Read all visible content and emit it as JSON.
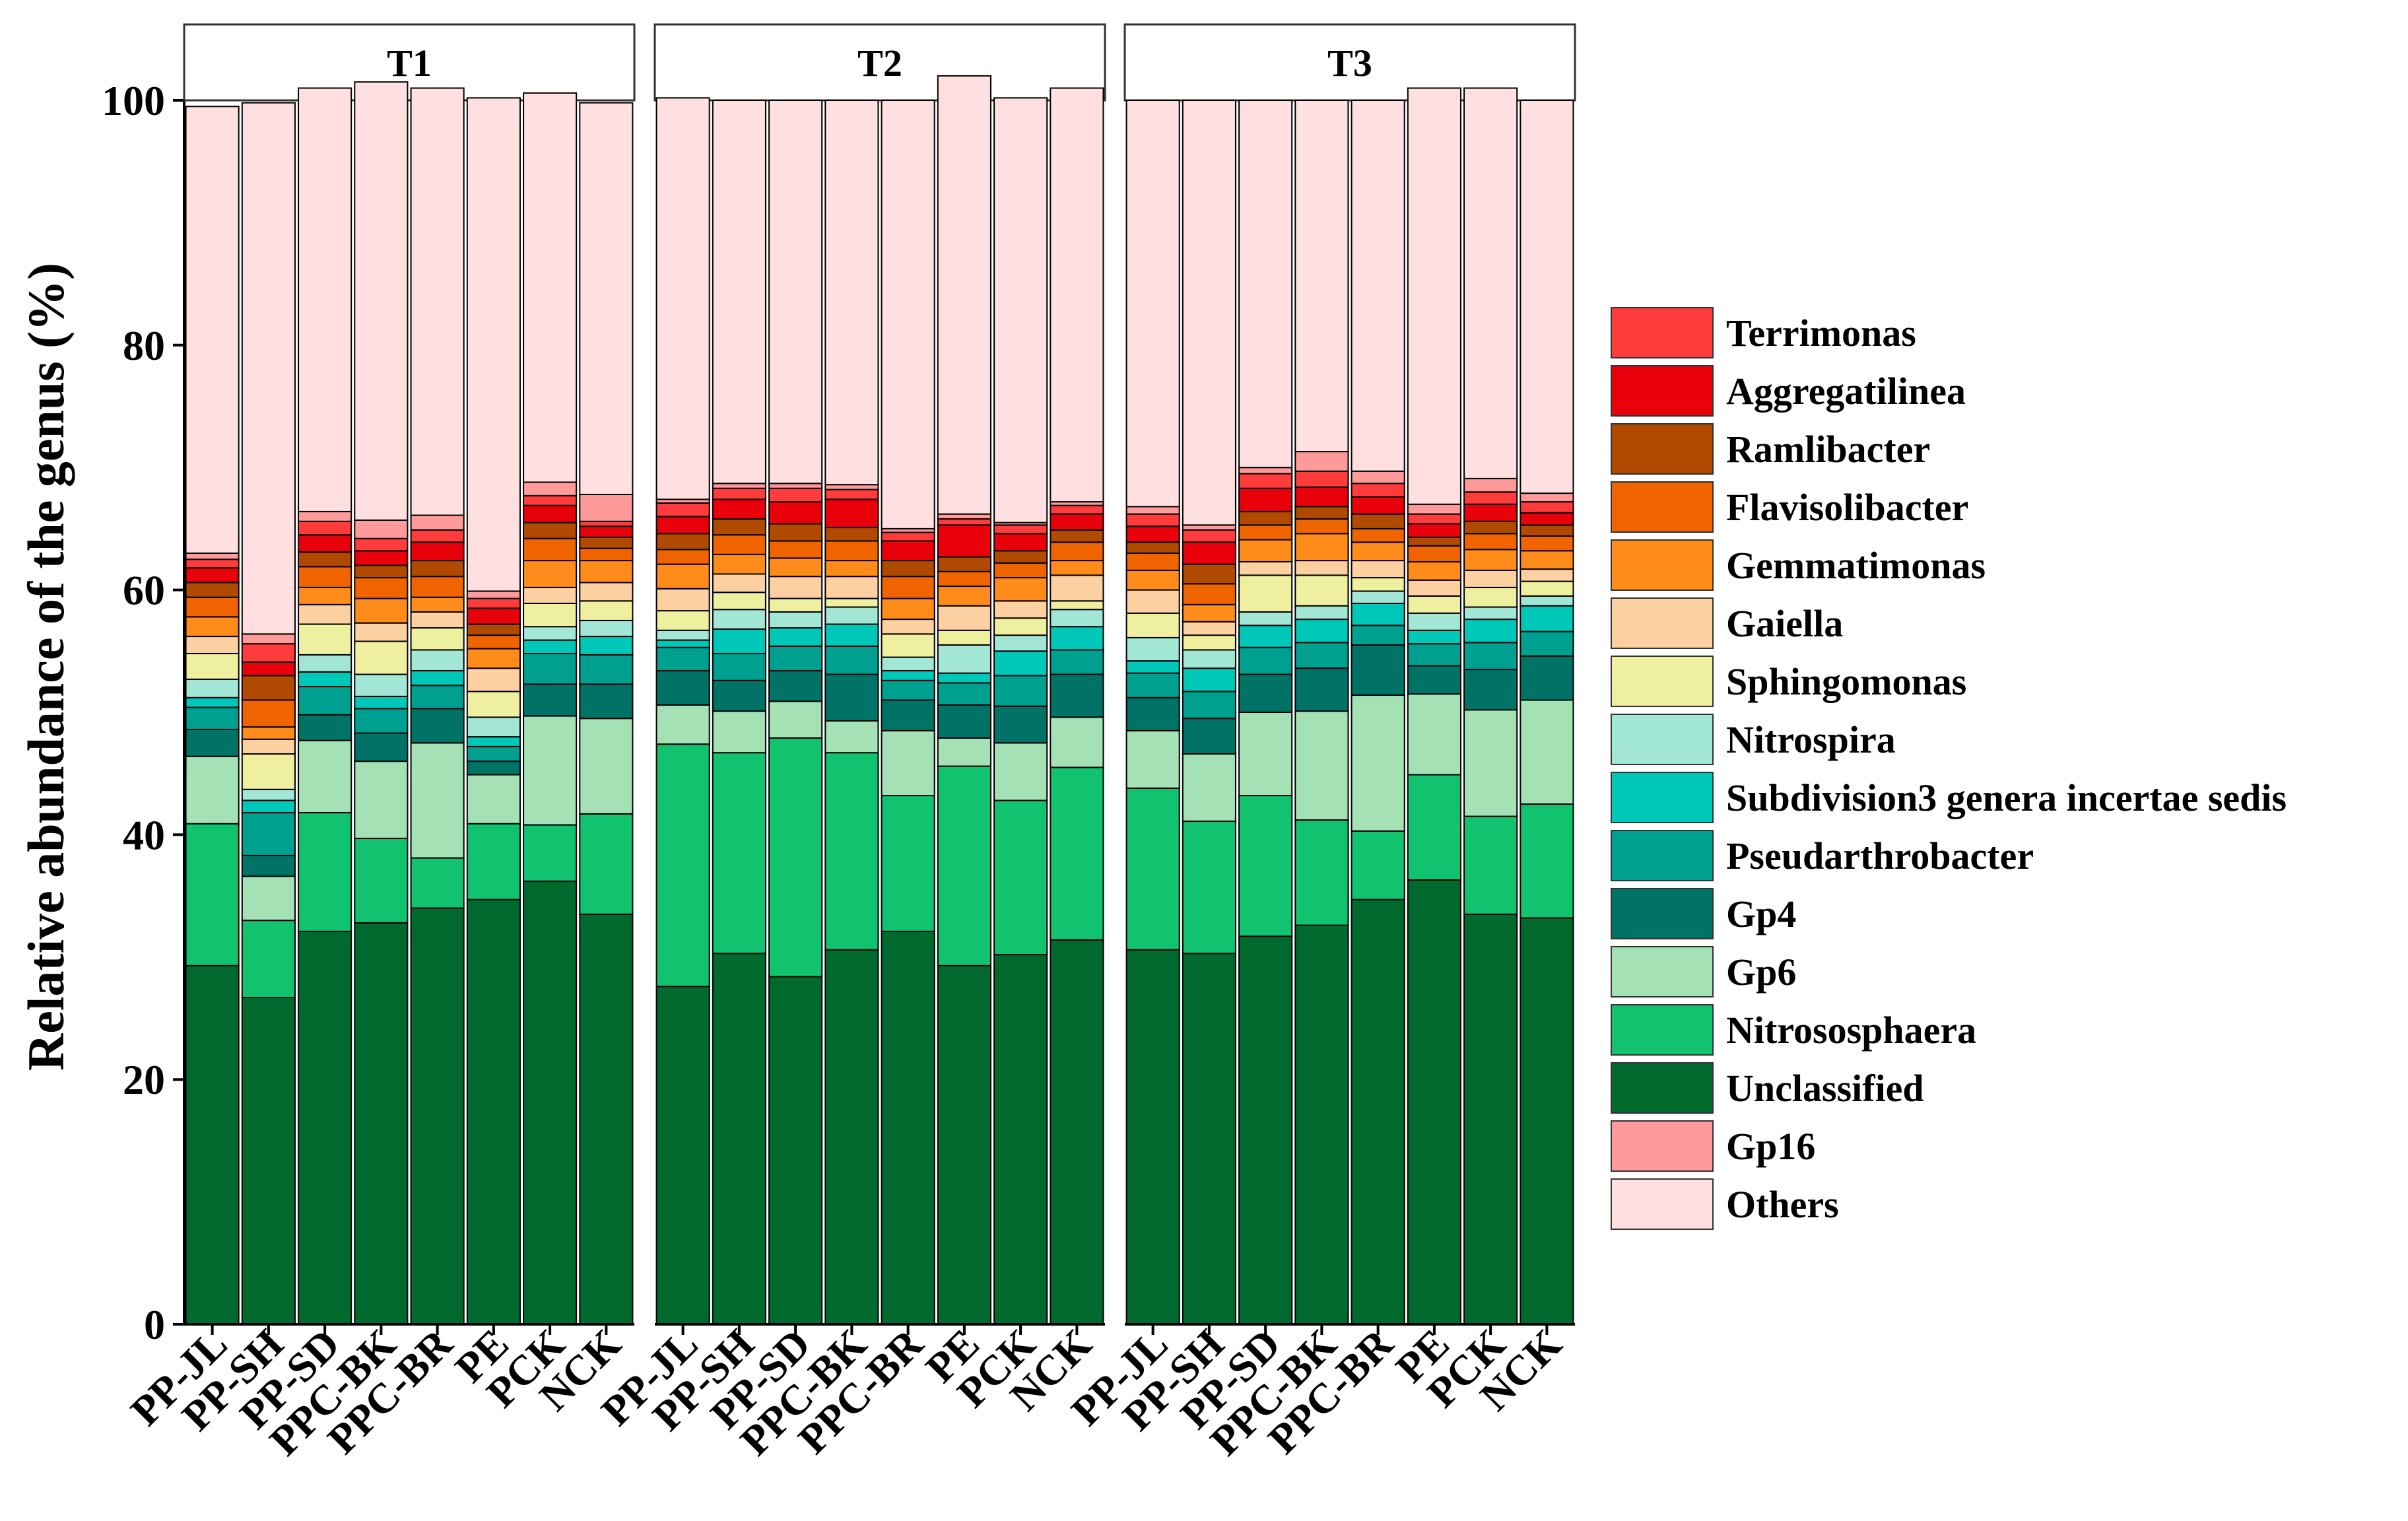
{
  "chart_data": {
    "type": "bar",
    "stacked": true,
    "title": "",
    "ylabel": "Relative abundance of   the genus (%)",
    "xlabel": "",
    "ylim": [
      0,
      100
    ],
    "yticks": [
      0,
      20,
      40,
      60,
      80,
      100
    ],
    "categories": [
      "PP-JL",
      "PP-SH",
      "PP-SD",
      "PPC-BK",
      "PPC-BR",
      "PE",
      "PCK",
      "NCK"
    ],
    "facets": [
      "T1",
      "T2",
      "T3"
    ],
    "stack_order": [
      "Unclassified",
      "Nitrososphaera",
      "Gp6",
      "Gp4",
      "Pseudarthrobacter",
      "Subdivision3 genera incertae sedis",
      "Nitrospira",
      "Sphingomonas",
      "Gaiella",
      "Gemmatimonas",
      "Flavisolibacter",
      "Ramlibacter",
      "Aggregatilinea",
      "Terrimonas",
      "Gp16",
      "Others"
    ],
    "legend": {
      "position": "right",
      "entries": [
        {
          "name": "Terrimonas",
          "color": "#ff3b3b"
        },
        {
          "name": "Aggregatilinea",
          "color": "#e8000b"
        },
        {
          "name": "Ramlibacter",
          "color": "#b04a00"
        },
        {
          "name": "Flavisolibacter",
          "color": "#f06400"
        },
        {
          "name": "Gemmatimonas",
          "color": "#ff8c1a"
        },
        {
          "name": "Gaiella",
          "color": "#fdd0a2"
        },
        {
          "name": "Sphingomonas",
          "color": "#efefa0"
        },
        {
          "name": "Nitrospira",
          "color": "#a2e6d6"
        },
        {
          "name": "Subdivision3 genera incertae sedis",
          "color": "#00c8b8"
        },
        {
          "name": "Pseudarthrobacter",
          "color": "#00a090"
        },
        {
          "name": "Gp4",
          "color": "#007366"
        },
        {
          "name": "Gp6",
          "color": "#a4e2b6"
        },
        {
          "name": "Nitrososphaera",
          "color": "#11c26e"
        },
        {
          "name": "Unclassified",
          "color": "#006a2e"
        },
        {
          "name": "Gp16",
          "color": "#ff9a9a"
        },
        {
          "name": "Others",
          "color": "#ffdfe0"
        }
      ]
    },
    "panels": [
      {
        "facet": "T1",
        "series": {
          "Unclassified": [
            29.3,
            26.7,
            32.1,
            32.8,
            34.0,
            34.7,
            36.2,
            33.5
          ],
          "Nitrososphaera": [
            11.6,
            6.3,
            9.7,
            6.9,
            4.1,
            6.2,
            4.6,
            8.2
          ],
          "Gp6": [
            5.5,
            3.6,
            5.9,
            6.3,
            9.4,
            4.0,
            8.9,
            7.8
          ],
          "Gp4": [
            2.2,
            1.7,
            2.1,
            2.3,
            2.8,
            1.1,
            2.6,
            2.8
          ],
          "Pseudarthrobacter": [
            1.8,
            3.5,
            2.3,
            2.0,
            1.9,
            1.2,
            2.5,
            2.4
          ],
          "Subdivision3 genera incertae sedis": [
            0.8,
            1.0,
            1.2,
            1.0,
            1.2,
            0.8,
            1.1,
            1.5
          ],
          "Nitrospira": [
            1.5,
            0.9,
            1.4,
            1.8,
            1.7,
            1.6,
            1.1,
            1.3
          ],
          "Sphingomonas": [
            2.1,
            2.9,
            2.5,
            2.7,
            1.8,
            2.1,
            1.9,
            1.6
          ],
          "Gaiella": [
            1.4,
            1.2,
            1.6,
            1.5,
            1.3,
            1.9,
            1.3,
            1.5
          ],
          "Gemmatimonas": [
            1.6,
            1.0,
            1.4,
            2.0,
            1.2,
            1.6,
            2.2,
            1.8
          ],
          "Flavisolibacter": [
            1.6,
            2.2,
            1.7,
            1.7,
            1.7,
            1.1,
            1.8,
            1.0
          ],
          "Ramlibacter": [
            1.2,
            2.0,
            1.2,
            1.0,
            1.3,
            0.9,
            1.3,
            0.9
          ],
          "Aggregatilinea": [
            1.2,
            1.1,
            1.4,
            1.2,
            1.5,
            1.3,
            1.4,
            0.9
          ],
          "Terrimonas": [
            0.7,
            1.5,
            1.1,
            1.0,
            1.0,
            0.8,
            0.8,
            0.4
          ],
          "Gp16": [
            0.5,
            0.8,
            0.8,
            1.5,
            1.2,
            0.6,
            1.1,
            2.2
          ],
          "Others": [
            36.5,
            43.4,
            34.6,
            35.8,
            34.9,
            40.3,
            31.8,
            32.0
          ]
        }
      },
      {
        "facet": "T2",
        "series": {
          "Unclassified": [
            27.6,
            30.3,
            28.4,
            30.6,
            32.1,
            29.3,
            30.2,
            31.4
          ],
          "Nitrososphaera": [
            19.8,
            16.4,
            19.5,
            16.1,
            11.1,
            16.3,
            12.6,
            14.1
          ],
          "Gp6": [
            3.2,
            3.4,
            3.0,
            2.6,
            5.3,
            2.3,
            4.7,
            4.1
          ],
          "Gp4": [
            2.8,
            2.5,
            2.5,
            3.8,
            2.5,
            2.7,
            3.0,
            3.5
          ],
          "Pseudarthrobacter": [
            1.9,
            2.2,
            2.0,
            2.3,
            1.6,
            1.8,
            2.5,
            2.0
          ],
          "Subdivision3 genera incertae sedis": [
            0.6,
            2.0,
            1.5,
            1.8,
            0.8,
            0.8,
            2.0,
            1.9
          ],
          "Nitrospira": [
            0.8,
            1.6,
            1.3,
            1.4,
            1.1,
            2.3,
            1.3,
            1.4
          ],
          "Sphingomonas": [
            1.6,
            1.4,
            1.1,
            0.7,
            1.9,
            1.2,
            1.4,
            0.7
          ],
          "Gaiella": [
            1.8,
            1.5,
            1.8,
            1.8,
            1.2,
            2.0,
            1.4,
            2.1
          ],
          "Gemmatimonas": [
            2.0,
            1.6,
            1.5,
            1.3,
            1.7,
            1.6,
            1.9,
            1.2
          ],
          "Flavisolibacter": [
            1.2,
            1.6,
            1.4,
            1.6,
            1.8,
            1.2,
            1.2,
            1.5
          ],
          "Ramlibacter": [
            1.3,
            1.3,
            1.4,
            1.1,
            1.3,
            1.2,
            1.0,
            1.0
          ],
          "Aggregatilinea": [
            1.4,
            1.6,
            1.8,
            2.3,
            1.6,
            2.6,
            1.4,
            1.3
          ],
          "Terrimonas": [
            1.1,
            0.9,
            1.1,
            0.8,
            0.7,
            0.5,
            0.7,
            0.7
          ],
          "Gp16": [
            0.3,
            0.4,
            0.4,
            0.4,
            0.3,
            0.4,
            0.2,
            0.3
          ],
          "Others": [
            32.8,
            31.3,
            31.3,
            31.4,
            35.0,
            35.8,
            34.7,
            33.8
          ]
        }
      },
      {
        "facet": "T3",
        "series": {
          "Unclassified": [
            30.6,
            30.3,
            31.7,
            32.6,
            34.7,
            36.3,
            33.5,
            33.2
          ],
          "Nitrososphaera": [
            13.2,
            10.8,
            11.5,
            8.6,
            5.6,
            8.6,
            8.0,
            9.3
          ],
          "Gp6": [
            4.7,
            5.5,
            6.8,
            8.9,
            11.1,
            6.6,
            8.7,
            8.5
          ],
          "Gp4": [
            2.7,
            2.9,
            3.1,
            3.5,
            4.1,
            2.3,
            3.3,
            3.6
          ],
          "Pseudarthrobacter": [
            2.0,
            2.2,
            2.2,
            2.1,
            1.6,
            1.8,
            2.2,
            2.0
          ],
          "Subdivision3 genera incertae sedis": [
            1.0,
            1.9,
            1.8,
            1.9,
            1.8,
            1.1,
            1.9,
            2.1
          ],
          "Nitrospira": [
            1.9,
            1.5,
            1.1,
            1.1,
            1.0,
            1.4,
            1.0,
            0.8
          ],
          "Sphingomonas": [
            2.0,
            1.2,
            3.0,
            2.5,
            1.1,
            1.4,
            1.6,
            1.2
          ],
          "Gaiella": [
            1.9,
            1.1,
            1.1,
            1.2,
            1.4,
            1.3,
            1.4,
            1.0
          ],
          "Gemmatimonas": [
            1.6,
            1.4,
            1.8,
            2.2,
            1.5,
            1.5,
            1.7,
            1.5
          ],
          "Flavisolibacter": [
            1.4,
            1.7,
            1.2,
            1.2,
            1.1,
            1.3,
            1.3,
            1.2
          ],
          "Ramlibacter": [
            0.9,
            1.6,
            1.1,
            1.0,
            1.2,
            0.7,
            1.0,
            0.9
          ],
          "Aggregatilinea": [
            1.3,
            1.8,
            1.9,
            1.6,
            1.4,
            1.1,
            1.4,
            1.0
          ],
          "Terrimonas": [
            1.0,
            1.0,
            1.2,
            1.3,
            1.1,
            0.8,
            1.0,
            0.9
          ],
          "Gp16": [
            0.6,
            0.4,
            0.5,
            1.6,
            1.0,
            0.8,
            1.1,
            0.7
          ],
          "Others": [
            33.2,
            34.7,
            30.0,
            28.7,
            30.3,
            34.0,
            31.9,
            32.1
          ]
        }
      }
    ]
  }
}
